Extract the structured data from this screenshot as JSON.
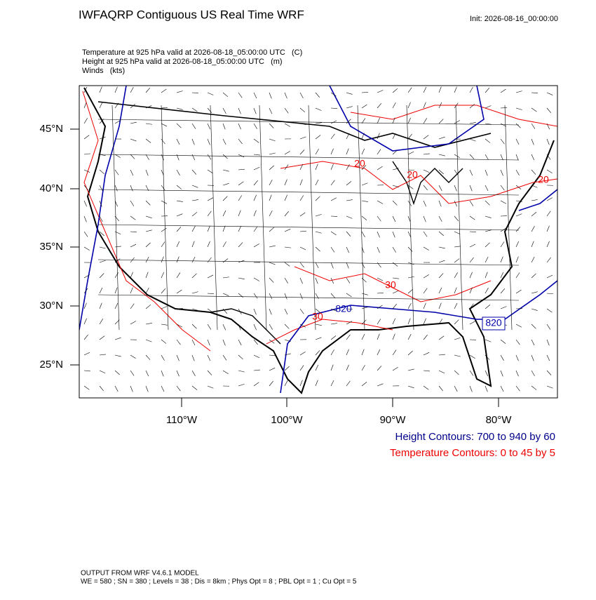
{
  "header": {
    "title": "IWFAQRP Contiguous US Real Time WRF",
    "init": "Init: 2026-08-16_00:00:00"
  },
  "fields": [
    "Temperature at 925 hPa valid at 2026-08-18_05:00:00 UTC   (C)",
    "Height at 925 hPa valid at 2026-08-18_05:00:00 UTC   (m)",
    "Winds   (kts)"
  ],
  "map": {
    "lat_labels": [
      "45°N",
      "40°N",
      "35°N",
      "30°N",
      "25°N"
    ],
    "lon_labels": [
      "110°W",
      "100°W",
      "90°W",
      "80°W"
    ],
    "contour_labels": [
      "20",
      "20",
      "20",
      "30",
      "30",
      "820",
      "820"
    ]
  },
  "legend": [
    "Height Contours: 700 to 940 by 60",
    "Temperature Contours: 0 to 45 by 5"
  ],
  "footer": [
    "OUTPUT FROM WRF V4.6.1 MODEL",
    "WE = 580 ; SN = 380 ; Levels = 38 ; Dis = 8km ; Phys Opt = 8 ; PBL Opt = 1 ; Cu Opt = 5"
  ]
}
